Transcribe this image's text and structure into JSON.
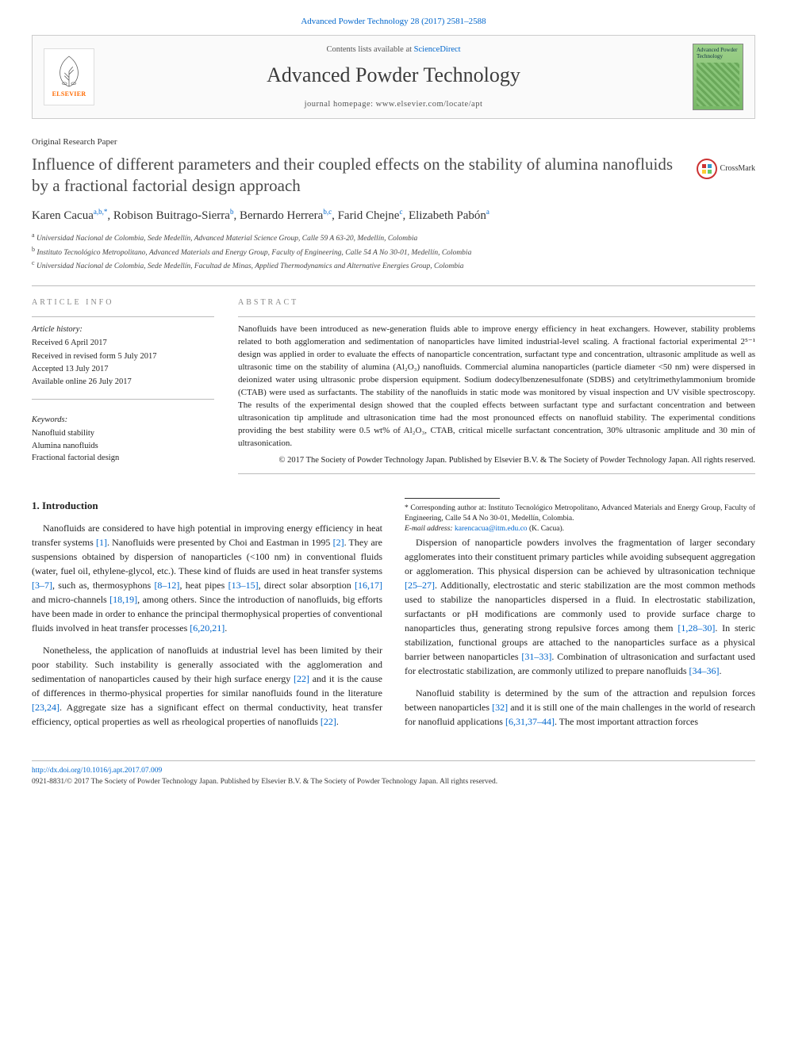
{
  "citation_line": "Advanced Powder Technology 28 (2017) 2581–2588",
  "banner": {
    "contents_text": "Contents lists available at",
    "contents_link": "ScienceDirect",
    "journal": "Advanced Powder Technology",
    "homepage_label": "journal homepage:",
    "homepage_url": "www.elsevier.com/locate/apt",
    "publisher_brand": "ELSEVIER",
    "cover_title": "Advanced Powder Technology"
  },
  "article_type": "Original Research Paper",
  "title": "Influence of different parameters and their coupled effects on the stability of alumina nanofluids by a fractional factorial design approach",
  "crossmark_label": "CrossMark",
  "authors": [
    {
      "name": "Karen Cacua",
      "aff": "a,b,",
      "star": true
    },
    {
      "name": "Robison Buitrago-Sierra",
      "aff": "b"
    },
    {
      "name": "Bernardo Herrera",
      "aff": "b,c"
    },
    {
      "name": "Farid Chejne",
      "aff": "c"
    },
    {
      "name": "Elizabeth Pabón",
      "aff": "a"
    }
  ],
  "affiliations": [
    {
      "key": "a",
      "text": "Universidad Nacional de Colombia, Sede Medellín, Advanced Material Science Group, Calle 59 A 63-20, Medellín, Colombia"
    },
    {
      "key": "b",
      "text": "Instituto Tecnológico Metropolitano, Advanced Materials and Energy Group, Faculty of Engineering, Calle 54 A No 30-01, Medellín, Colombia"
    },
    {
      "key": "c",
      "text": "Universidad Nacional de Colombia, Sede Medellín, Facultad de Minas, Applied Thermodynamics and Alternative Energies Group, Colombia"
    }
  ],
  "article_info_heading": "ARTICLE INFO",
  "history_label": "Article history:",
  "history": [
    "Received 6 April 2017",
    "Received in revised form 5 July 2017",
    "Accepted 13 July 2017",
    "Available online 26 July 2017"
  ],
  "keywords_label": "Keywords:",
  "keywords": [
    "Nanofluid stability",
    "Alumina nanofluids",
    "Fractional factorial design"
  ],
  "abstract_heading": "ABSTRACT",
  "abstract": "Nanofluids have been introduced as new-generation fluids able to improve energy efficiency in heat exchangers. However, stability problems related to both agglomeration and sedimentation of nanoparticles have limited industrial-level scaling. A fractional factorial experimental 2⁵⁻¹ design was applied in order to evaluate the effects of nanoparticle concentration, surfactant type and concentration, ultrasonic amplitude as well as ultrasonic time on the stability of alumina (Al₂O₃) nanofluids. Commercial alumina nanoparticles (particle diameter <50 nm) were dispersed in deionized water using ultrasonic probe dispersion equipment. Sodium dodecylbenzenesulfonate (SDBS) and cetyltrimethylammonium bromide (CTAB) were used as surfactants. The stability of the nanofluids in static mode was monitored by visual inspection and UV visible spectroscopy. The results of the experimental design showed that the coupled effects between surfactant type and surfactant concentration and between ultrasonication tip amplitude and ultrasonication time had the most pronounced effects on nanofluid stability. The experimental conditions providing the best stability were 0.5 wt% of Al₂O₃, CTAB, critical micelle surfactant concentration, 30% ultrasonic amplitude and 30 min of ultrasonication.",
  "copyright_abstract": "© 2017 The Society of Powder Technology Japan. Published by Elsevier B.V. & The Society of Powder Technology Japan. All rights reserved.",
  "section1_heading": "1. Introduction",
  "paragraphs": [
    "Nanofluids are considered to have high potential in improving energy efficiency in heat transfer systems [1]. Nanofluids were presented by Choi and Eastman in 1995 [2]. They are suspensions obtained by dispersion of nanoparticles (<100 nm) in conventional fluids (water, fuel oil, ethylene-glycol, etc.). These kind of fluids are used in heat transfer systems [3–7], such as, thermosyphons [8–12], heat pipes [13–15], direct solar absorption [16,17] and micro-channels [18,19], among others. Since the introduction of nanofluids, big efforts have been made in order to enhance the principal thermophysical properties of conventional fluids involved in heat transfer processes [6,20,21].",
    "Nonetheless, the application of nanofluids at industrial level has been limited by their poor stability. Such instability is generally associated with the agglomeration and sedimentation of nanoparticles caused by their high surface energy [22] and it is the cause of differences in thermo-physical properties for similar nanofluids found in the literature [23,24]. Aggregate size has a significant effect on thermal conductivity, heat transfer efficiency, optical properties as well as rheological properties of nanofluids [22].",
    "Dispersion of nanoparticle powders involves the fragmentation of larger secondary agglomerates into their constituent primary particles while avoiding subsequent aggregation or agglomeration. This physical dispersion can be achieved by ultrasonication technique [25–27]. Additionally, electrostatic and steric stabilization are the most common methods used to stabilize the nanoparticles dispersed in a fluid. In electrostatic stabilization, surfactants or pH modifications are commonly used to provide surface charge to nanoparticles thus, generating strong repulsive forces among them [1,28–30]. In steric stabilization, functional groups are attached to the nanoparticles surface as a physical barrier between nanoparticles [31–33]. Combination of ultrasonication and surfactant used for electrostatic stabilization, are commonly utilized to prepare nanofluids [34–36].",
    "Nanofluid stability is determined by the sum of the attraction and repulsion forces between nanoparticles [32] and it is still one of the main challenges in the world of research for nanofluid applications [6,31,37–44]. The most important attraction forces"
  ],
  "corr": {
    "label": "* Corresponding author at: Instituto Tecnológico Metropolitano, Advanced Materials and Energy Group, Faculty of Engineering, Calle 54 A No 30-01, Medellín, Colombia.",
    "email_label": "E-mail address:",
    "email": "karencacua@itm.edu.co",
    "email_name": "(K. Cacua)."
  },
  "footer": {
    "doi": "http://dx.doi.org/10.1016/j.apt.2017.07.009",
    "issn_copy": "0921-8831/© 2017 The Society of Powder Technology Japan. Published by Elsevier B.V. & The Society of Powder Technology Japan. All rights reserved."
  },
  "colors": {
    "link": "#0066cc",
    "heading_gray": "#888888",
    "elsevier_orange": "#ff6a00",
    "cover_green_top": "#9dd08a",
    "cover_green_bot": "#78b867",
    "rule": "#bbbbbb"
  }
}
